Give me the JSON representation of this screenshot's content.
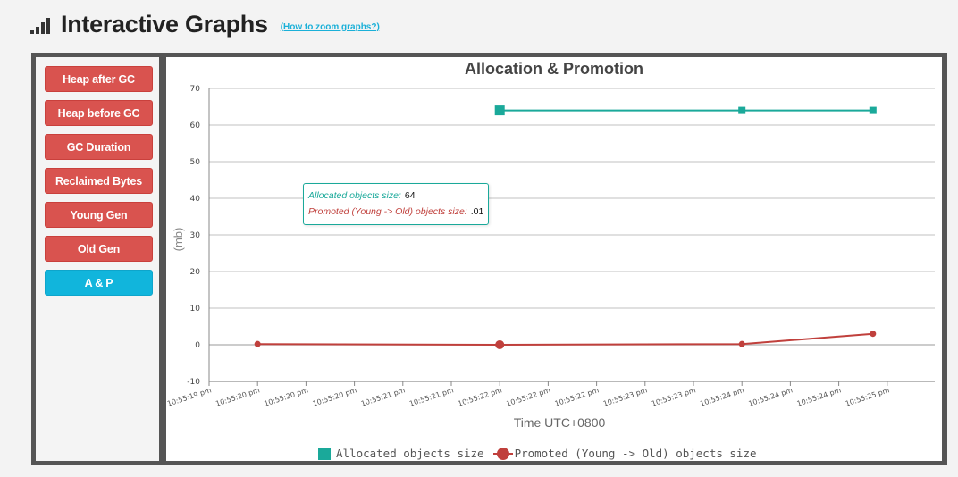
{
  "header": {
    "title": "Interactive Graphs",
    "zoom_link": "(How to zoom graphs?)"
  },
  "sidebar": {
    "items": [
      {
        "label": "Heap after GC",
        "active": false
      },
      {
        "label": "Heap before GC",
        "active": false
      },
      {
        "label": "GC Duration",
        "active": false
      },
      {
        "label": "Reclaimed Bytes",
        "active": false
      },
      {
        "label": "Young Gen",
        "active": false
      },
      {
        "label": "Old Gen",
        "active": false
      },
      {
        "label": "A & P",
        "active": true
      }
    ]
  },
  "tooltip": {
    "allocated_label": "Allocated objects size:",
    "allocated_value": "64",
    "promoted_label": "Promoted (Young -> Old) objects size:",
    "promoted_value": ".01"
  },
  "colors": {
    "allocated": "#1aa99a",
    "promoted": "#c0403c",
    "button": "#d9534f",
    "button_active": "#11b5dc"
  },
  "chart_data": {
    "type": "line",
    "title": "Allocation & Promotion",
    "xlabel": "Time UTC+0800",
    "ylabel": "(mb)",
    "ylim": [
      -10,
      70
    ],
    "yticks": [
      -10,
      0,
      10,
      20,
      30,
      40,
      50,
      60,
      70
    ],
    "grid": true,
    "legend": "bottom",
    "x_tick_labels": [
      "10:55:19 pm",
      "10:55:20 pm",
      "10:55:20 pm",
      "10:55:20 pm",
      "10:55:21 pm",
      "10:55:21 pm",
      "10:55:22 pm",
      "10:55:22 pm",
      "10:55:22 pm",
      "10:55:23 pm",
      "10:55:23 pm",
      "10:55:24 pm",
      "10:55:24 pm",
      "10:55:24 pm",
      "10:55:25 pm"
    ],
    "series": [
      {
        "name": "Allocated objects size",
        "marker": "square",
        "color": "#1aa99a",
        "points": [
          {
            "x": "10:55:22 pm",
            "y": 64
          },
          {
            "x": "10:55:24 pm",
            "y": 64
          },
          {
            "x": "10:55:25 pm",
            "y": 64
          }
        ]
      },
      {
        "name": "Promoted (Young -> Old) objects size",
        "marker": "circle",
        "color": "#c0403c",
        "points": [
          {
            "x": "10:55:20 pm",
            "y": 0.2
          },
          {
            "x": "10:55:22 pm",
            "y": 0.01
          },
          {
            "x": "10:55:24 pm",
            "y": 0.2
          },
          {
            "x": "10:55:25 pm",
            "y": 3
          }
        ]
      }
    ]
  }
}
